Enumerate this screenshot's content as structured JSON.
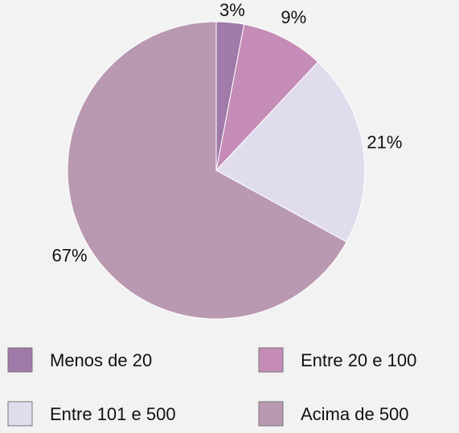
{
  "chart_data": {
    "type": "pie",
    "categories": [
      "Menos de 20",
      "Entre 20 e 100",
      "Entre 101 e 500",
      "Acima de 500"
    ],
    "values": [
      3,
      9,
      21,
      67
    ],
    "value_labels": [
      "3%",
      "9%",
      "21%",
      "67%"
    ],
    "colors": [
      "#a07aa8",
      "#c48cb6",
      "#e0dced",
      "#b999b1"
    ],
    "legend": "bottom"
  }
}
